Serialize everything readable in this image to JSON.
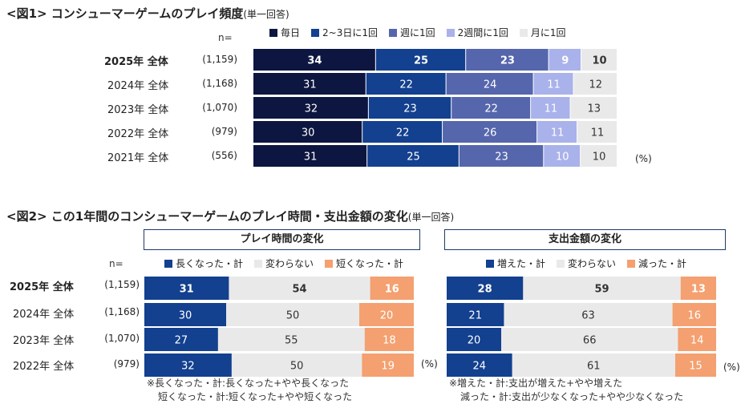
{
  "chart_data": [
    {
      "type": "bar",
      "orientation": "horizontal-stacked-100",
      "title": "<図1> コンシューマーゲームのプレイ頻度",
      "note": "(単一回答)",
      "n_header": "n=",
      "unit": "(%)",
      "categories": [
        "2025年 全体",
        "2024年 全体",
        "2023年 全体",
        "2022年 全体",
        "2021年 全体"
      ],
      "n_values": [
        "(1,159)",
        "(1,168)",
        "(1,070)",
        "(979)",
        "(556)"
      ],
      "series": [
        {
          "name": "毎日",
          "color": "#0d1640",
          "values": [
            34,
            31,
            32,
            30,
            31
          ]
        },
        {
          "name": "2~3日に1回",
          "color": "#13408f",
          "values": [
            25,
            22,
            23,
            22,
            25
          ]
        },
        {
          "name": "週に1回",
          "color": "#5566ad",
          "values": [
            23,
            24,
            22,
            26,
            23
          ]
        },
        {
          "name": "2週間に1回",
          "color": "#a9b2ea",
          "values": [
            9,
            11,
            11,
            11,
            10
          ]
        },
        {
          "name": "月に1回",
          "color": "#e9e9e9",
          "values": [
            10,
            12,
            13,
            11,
            10
          ]
        }
      ]
    },
    {
      "type": "bar",
      "orientation": "horizontal-diverging",
      "title": "<図2> この1年間のコンシューマーゲームのプレイ時間・支出金額の変化",
      "note": "(単一回答)",
      "n_header": "n=",
      "unit": "(%)",
      "categories": [
        "2025年 全体",
        "2024年 全体",
        "2023年 全体",
        "2022年 全体"
      ],
      "n_values": [
        "(1,159)",
        "(1,168)",
        "(1,070)",
        "(979)"
      ],
      "panels": [
        {
          "title": "プレイ時間の変化",
          "series": [
            {
              "name": "長くなった・計",
              "color": "#13408f",
              "values": [
                31,
                30,
                27,
                32
              ]
            },
            {
              "name": "変わらない",
              "color": "#e9e9e9",
              "values": [
                54,
                50,
                55,
                50
              ]
            },
            {
              "name": "短くなった・計",
              "color": "#f4a070",
              "values": [
                16,
                20,
                18,
                19
              ]
            }
          ],
          "footnote": [
            "※長くなった・計:長くなった+やや長くなった",
            "短くなった・計:短くなった+やや短くなった"
          ]
        },
        {
          "title": "支出金額の変化",
          "series": [
            {
              "name": "増えた・計",
              "color": "#13408f",
              "values": [
                28,
                21,
                20,
                24
              ]
            },
            {
              "name": "変わらない",
              "color": "#e9e9e9",
              "values": [
                59,
                63,
                66,
                61
              ]
            },
            {
              "name": "減った・計",
              "color": "#f4a070",
              "values": [
                13,
                16,
                14,
                15
              ]
            }
          ],
          "footnote": [
            "※増えた・計:支出が増えた+やや増えた",
            "減った・計:支出が少なくなった+やや少なくなった"
          ]
        }
      ]
    }
  ]
}
